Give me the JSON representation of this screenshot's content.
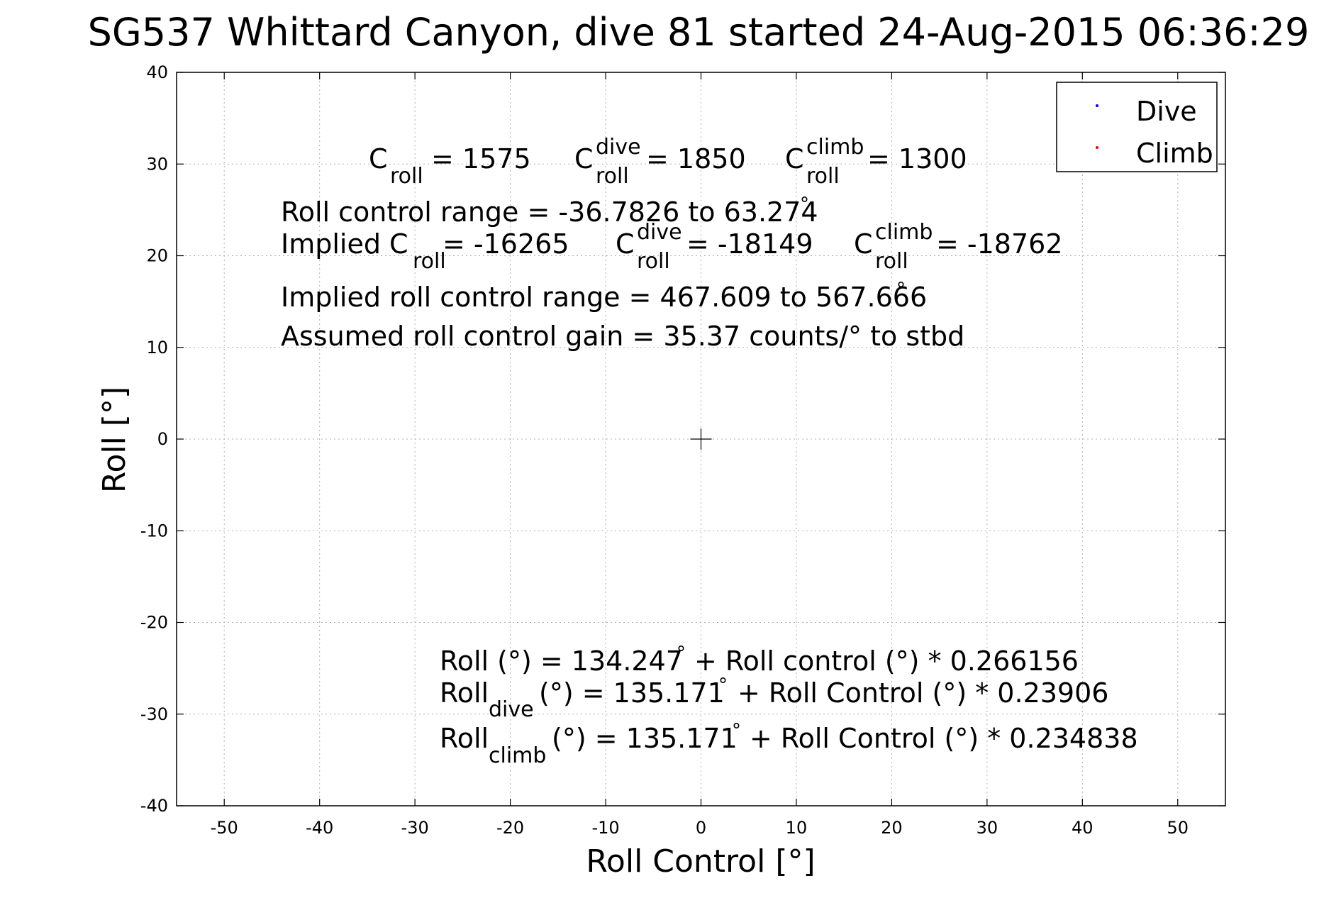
{
  "chart_data": {
    "type": "scatter",
    "title": "SG537 Whittard Canyon, dive 81 started 24-Aug-2015 06:36:29",
    "xlabel": "Roll Control [°]",
    "ylabel": "Roll [°]",
    "xlim": [
      -55,
      55
    ],
    "ylim": [
      -40,
      40
    ],
    "x_ticks": [
      -50,
      -40,
      -30,
      -20,
      -10,
      0,
      10,
      20,
      30,
      40,
      50
    ],
    "y_ticks": [
      40,
      30,
      20,
      10,
      0,
      -10,
      -20,
      -30,
      -40
    ],
    "grid": true,
    "legend_position": "top-right",
    "series": [
      {
        "name": "Dive",
        "color": "#0000ff",
        "x": [],
        "y": []
      },
      {
        "name": "Climb",
        "color": "#ff0000",
        "x": [],
        "y": []
      }
    ],
    "center_marker": {
      "x": 0,
      "y": 0
    },
    "annotations": {
      "line1": {
        "c_roll_base": "C",
        "c_roll_sub": "roll",
        "c_roll_val": "= 1575",
        "c_dive_base": "C",
        "c_dive_sup": "dive",
        "c_dive_sub": "roll",
        "c_dive_val": "= 1850",
        "c_climb_base": "C",
        "c_climb_sup": "climb",
        "c_climb_sub": "roll",
        "c_climb_val": "= 1300"
      },
      "roll_control_range": "Roll control range = -36.7826 to 63.274",
      "degree_symbol": "°",
      "line3": {
        "prefix": "Implied C",
        "c_roll_sub": "roll",
        "c_roll_val": "= -16265",
        "c_dive_base": "C",
        "c_dive_sup": "dive",
        "c_dive_sub": "roll",
        "c_dive_val": "= -18149",
        "c_climb_base": "C",
        "c_climb_sup": "climb",
        "c_climb_sub": "roll",
        "c_climb_val": "= -18762"
      },
      "implied_range": "Implied roll control range = 467.609 to 567.666",
      "gain": "Assumed roll control gain = 35.37 counts/° to stbd",
      "fit_all_prefix": "Roll (°) = 134.247",
      "fit_all_suffix": "+ Roll control (°) * 0.266156",
      "fit_dive_base": "Roll",
      "fit_dive_sub": "dive",
      "fit_dive_mid": "(°) = 135.171",
      "fit_dive_suffix": "+ Roll Control (°) * 0.23906",
      "fit_climb_base": "Roll",
      "fit_climb_sub": "climb",
      "fit_climb_mid": "(°) = 135.171",
      "fit_climb_suffix": "+ Roll Control (°) * 0.234838"
    }
  }
}
